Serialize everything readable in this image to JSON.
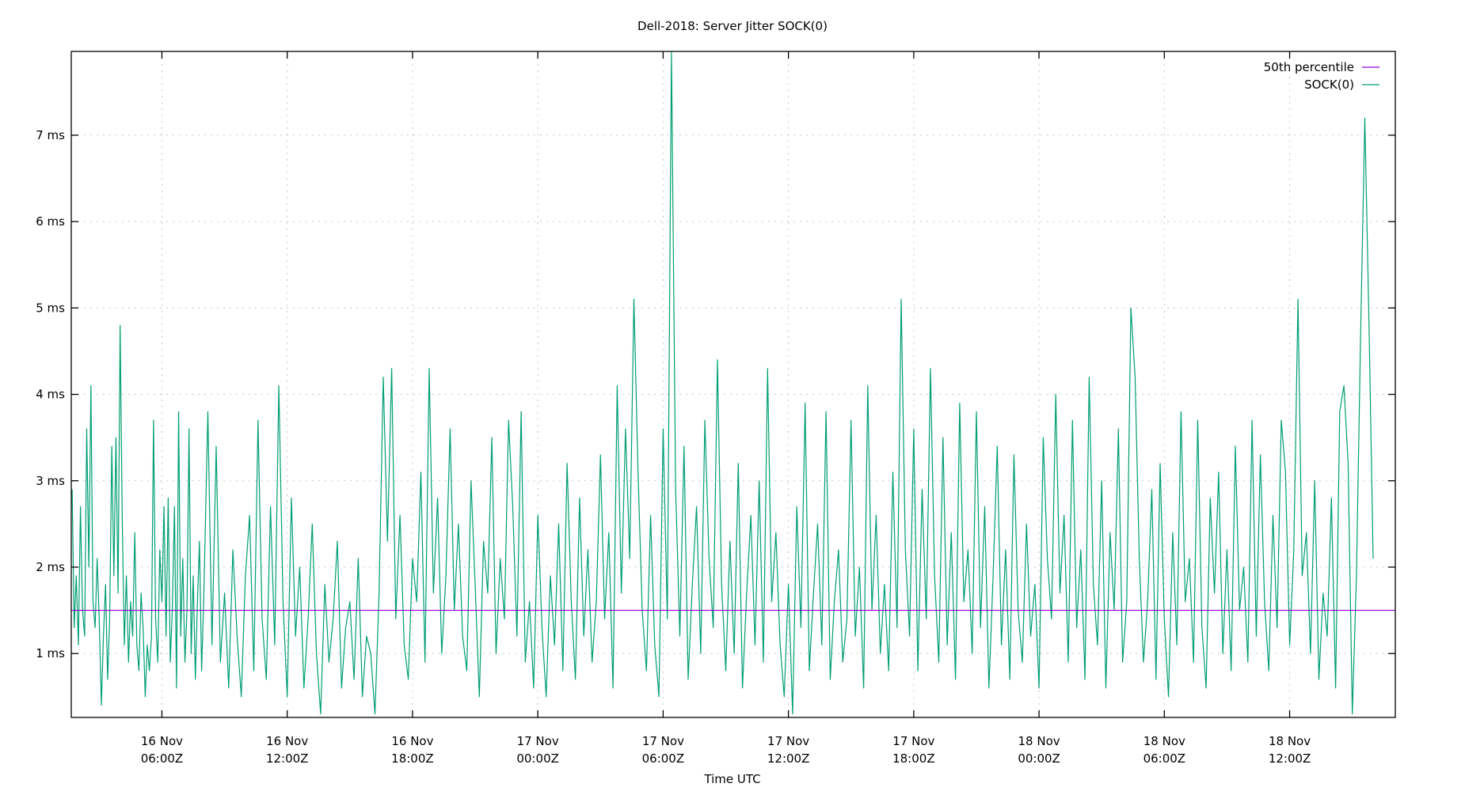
{
  "chart_data": {
    "type": "line",
    "title": "Dell-2018: Server Jitter SOCK(0)",
    "xlabel": "Time UTC",
    "ylabel": "",
    "ylim": [
      0.26,
      7.97
    ],
    "xlim_hours_from_16Nov_00Z": [
      1.66,
      65.06
    ],
    "grid": true,
    "legend_position": "top-right",
    "y_ticks": [
      {
        "value": 1,
        "label": "1 ms"
      },
      {
        "value": 2,
        "label": "2 ms"
      },
      {
        "value": 3,
        "label": "3 ms"
      },
      {
        "value": 4,
        "label": "4 ms"
      },
      {
        "value": 5,
        "label": "5 ms"
      },
      {
        "value": 6,
        "label": "6 ms"
      },
      {
        "value": 7,
        "label": "7 ms"
      }
    ],
    "x_ticks": [
      {
        "hours": 6,
        "line1": "16 Nov",
        "line2": "06:00Z"
      },
      {
        "hours": 12,
        "line1": "16 Nov",
        "line2": "12:00Z"
      },
      {
        "hours": 18,
        "line1": "16 Nov",
        "line2": "18:00Z"
      },
      {
        "hours": 24,
        "line1": "17 Nov",
        "line2": "00:00Z"
      },
      {
        "hours": 30,
        "line1": "17 Nov",
        "line2": "06:00Z"
      },
      {
        "hours": 36,
        "line1": "17 Nov",
        "line2": "12:00Z"
      },
      {
        "hours": 42,
        "line1": "17 Nov",
        "line2": "18:00Z"
      },
      {
        "hours": 48,
        "line1": "18 Nov",
        "line2": "00:00Z"
      },
      {
        "hours": 54,
        "line1": "18 Nov",
        "line2": "06:00Z"
      },
      {
        "hours": 60,
        "line1": "18 Nov",
        "line2": "12:00Z"
      }
    ],
    "series": [
      {
        "name": "50th percentile",
        "color": "#9400d3",
        "constant": 1.5
      },
      {
        "name": "SOCK(0)",
        "color": "#009e73",
        "x_hours": [
          1.7,
          1.8,
          1.9,
          2.0,
          2.1,
          2.2,
          2.3,
          2.4,
          2.5,
          2.6,
          2.7,
          2.8,
          2.9,
          3.0,
          3.1,
          3.2,
          3.3,
          3.4,
          3.5,
          3.6,
          3.7,
          3.8,
          3.9,
          4.0,
          4.1,
          4.2,
          4.3,
          4.4,
          4.5,
          4.6,
          4.7,
          4.8,
          4.9,
          5.0,
          5.1,
          5.2,
          5.3,
          5.4,
          5.5,
          5.6,
          5.7,
          5.8,
          5.9,
          6.0,
          6.1,
          6.2,
          6.3,
          6.4,
          6.5,
          6.6,
          6.7,
          6.8,
          6.9,
          7.0,
          7.1,
          7.2,
          7.3,
          7.4,
          7.5,
          7.6,
          7.7,
          7.8,
          7.9,
          8.0,
          8.2,
          8.4,
          8.6,
          8.8,
          9.0,
          9.2,
          9.4,
          9.6,
          9.8,
          10.0,
          10.2,
          10.4,
          10.6,
          10.8,
          11.0,
          11.2,
          11.4,
          11.6,
          11.8,
          12.0,
          12.2,
          12.4,
          12.6,
          12.8,
          13.0,
          13.2,
          13.4,
          13.6,
          13.8,
          14.0,
          14.2,
          14.4,
          14.6,
          14.8,
          15.0,
          15.2,
          15.4,
          15.6,
          15.8,
          16.0,
          16.2,
          16.4,
          16.6,
          16.8,
          17.0,
          17.2,
          17.4,
          17.6,
          17.8,
          18.0,
          18.2,
          18.4,
          18.6,
          18.8,
          19.0,
          19.2,
          19.4,
          19.6,
          19.8,
          20.0,
          20.2,
          20.4,
          20.6,
          20.8,
          21.0,
          21.2,
          21.4,
          21.6,
          21.8,
          22.0,
          22.2,
          22.4,
          22.6,
          22.8,
          23.0,
          23.2,
          23.4,
          23.6,
          23.8,
          24.0,
          24.2,
          24.4,
          24.6,
          24.8,
          25.0,
          25.2,
          25.4,
          25.6,
          25.8,
          26.0,
          26.2,
          26.4,
          26.6,
          26.8,
          27.0,
          27.2,
          27.4,
          27.6,
          27.8,
          28.0,
          28.2,
          28.4,
          28.6,
          28.8,
          29.0,
          29.2,
          29.4,
          29.6,
          29.8,
          30.0,
          30.2,
          30.4,
          30.6,
          30.8,
          31.0,
          31.2,
          31.4,
          31.6,
          31.8,
          32.0,
          32.2,
          32.4,
          32.6,
          32.8,
          33.0,
          33.2,
          33.4,
          33.6,
          33.8,
          34.0,
          34.2,
          34.4,
          34.6,
          34.8,
          35.0,
          35.2,
          35.4,
          35.6,
          35.8,
          36.0,
          36.2,
          36.4,
          36.6,
          36.8,
          37.0,
          37.2,
          37.4,
          37.6,
          37.8,
          38.0,
          38.2,
          38.4,
          38.6,
          38.8,
          39.0,
          39.2,
          39.4,
          39.6,
          39.8,
          40.0,
          40.2,
          40.4,
          40.6,
          40.8,
          41.0,
          41.2,
          41.4,
          41.6,
          41.8,
          42.0,
          42.2,
          42.4,
          42.6,
          42.8,
          43.0,
          43.2,
          43.4,
          43.6,
          43.8,
          44.0,
          44.2,
          44.4,
          44.6,
          44.8,
          45.0,
          45.2,
          45.4,
          45.6,
          45.8,
          46.0,
          46.2,
          46.4,
          46.6,
          46.8,
          47.0,
          47.2,
          47.4,
          47.6,
          47.8,
          48.0,
          48.2,
          48.4,
          48.6,
          48.8,
          49.0,
          49.2,
          49.4,
          49.6,
          49.8,
          50.0,
          50.2,
          50.4,
          50.6,
          50.8,
          51.0,
          51.2,
          51.4,
          51.6,
          51.8,
          52.0,
          52.2,
          52.4,
          52.6,
          52.8,
          53.0,
          53.2,
          53.4,
          53.6,
          53.8,
          54.0,
          54.2,
          54.4,
          54.6,
          54.8,
          55.0,
          55.2,
          55.4,
          55.6,
          55.8,
          56.0,
          56.2,
          56.4,
          56.6,
          56.8,
          57.0,
          57.2,
          57.4,
          57.6,
          57.8,
          58.0,
          58.2,
          58.4,
          58.6,
          58.8,
          59.0,
          59.2,
          59.4,
          59.6,
          59.8,
          60.0,
          60.2,
          60.4,
          60.6,
          60.8,
          61.0,
          61.2,
          61.4,
          61.6,
          61.8,
          62.0,
          62.2,
          62.4,
          62.6,
          62.8,
          63.0,
          63.2,
          63.4,
          63.6,
          63.8,
          64.0,
          64.2,
          64.4,
          64.6,
          64.8,
          65.0
        ],
        "values": [
          2.9,
          1.3,
          1.9,
          1.1,
          2.7,
          1.5,
          1.2,
          3.6,
          2.0,
          4.1,
          1.6,
          1.3,
          2.1,
          1.4,
          0.4,
          1.2,
          1.8,
          0.7,
          1.4,
          3.4,
          1.9,
          3.5,
          1.7,
          4.8,
          2.6,
          1.1,
          1.9,
          0.9,
          1.6,
          1.2,
          2.4,
          1.1,
          0.8,
          1.7,
          1.3,
          0.5,
          1.1,
          0.8,
          1.2,
          3.7,
          1.4,
          0.9,
          2.2,
          1.6,
          2.7,
          1.2,
          2.8,
          0.9,
          1.5,
          2.7,
          0.6,
          3.8,
          1.2,
          2.1,
          0.9,
          1.5,
          3.6,
          1.0,
          1.9,
          0.7,
          1.6,
          2.3,
          0.8,
          1.6,
          3.8,
          1.1,
          3.4,
          0.9,
          1.7,
          0.6,
          2.2,
          1.2,
          0.5,
          1.9,
          2.6,
          0.8,
          3.7,
          1.4,
          0.7,
          2.7,
          1.1,
          4.1,
          1.6,
          0.5,
          2.8,
          1.2,
          2.0,
          0.6,
          1.4,
          2.5,
          1.0,
          0.3,
          1.8,
          0.9,
          1.4,
          2.3,
          0.6,
          1.3,
          1.6,
          0.7,
          2.1,
          0.5,
          1.2,
          1.0,
          0.3,
          1.7,
          4.2,
          2.3,
          4.3,
          1.4,
          2.6,
          1.1,
          0.7,
          2.1,
          1.6,
          3.1,
          0.9,
          4.3,
          1.7,
          2.8,
          1.0,
          1.9,
          3.6,
          1.5,
          2.5,
          1.2,
          0.8,
          3.0,
          1.8,
          0.5,
          2.3,
          1.7,
          3.5,
          1.0,
          2.1,
          1.4,
          3.7,
          2.7,
          1.2,
          3.8,
          0.9,
          1.6,
          0.6,
          2.6,
          1.3,
          0.5,
          1.9,
          1.1,
          2.5,
          0.8,
          3.2,
          1.6,
          0.7,
          2.8,
          1.2,
          2.2,
          0.9,
          1.6,
          3.3,
          1.4,
          2.4,
          0.6,
          4.1,
          1.7,
          3.6,
          2.1,
          5.1,
          3.1,
          1.5,
          0.8,
          2.6,
          1.1,
          0.5,
          3.6,
          1.4,
          7.97,
          2.9,
          1.2,
          3.4,
          0.7,
          1.8,
          2.7,
          1.0,
          3.7,
          2.1,
          1.3,
          4.4,
          1.8,
          0.8,
          2.3,
          1.0,
          3.2,
          0.6,
          1.7,
          2.6,
          1.1,
          3.0,
          0.9,
          4.3,
          1.6,
          2.4,
          1.1,
          0.5,
          1.8,
          0.3,
          2.7,
          1.3,
          3.9,
          0.8,
          1.7,
          2.5,
          1.1,
          3.8,
          0.7,
          1.6,
          2.2,
          0.9,
          1.4,
          3.7,
          1.2,
          2.0,
          0.6,
          4.1,
          1.5,
          2.6,
          1.0,
          1.8,
          0.8,
          3.1,
          1.3,
          5.1,
          2.2,
          1.2,
          3.6,
          0.8,
          2.9,
          1.4,
          4.3,
          1.9,
          0.9,
          3.5,
          1.1,
          2.4,
          0.7,
          3.9,
          1.6,
          2.2,
          1.0,
          3.8,
          1.3,
          2.7,
          0.6,
          1.9,
          3.4,
          1.1,
          2.2,
          0.7,
          3.3,
          1.5,
          0.9,
          2.5,
          1.2,
          1.8,
          0.6,
          3.5,
          2.1,
          1.4,
          4.0,
          1.7,
          2.6,
          0.9,
          3.7,
          1.3,
          2.2,
          0.7,
          4.2,
          1.8,
          1.1,
          3.0,
          0.6,
          2.4,
          1.5,
          3.6,
          0.9,
          1.6,
          5.0,
          4.2,
          2.1,
          0.9,
          1.6,
          2.9,
          0.7,
          3.2,
          1.4,
          0.5,
          2.4,
          1.1,
          3.8,
          1.6,
          2.1,
          0.9,
          3.7,
          1.3,
          0.6,
          2.8,
          1.7,
          3.1,
          1.0,
          2.2,
          0.8,
          3.4,
          1.5,
          2.0,
          0.9,
          3.7,
          1.2,
          3.3,
          1.6,
          0.8,
          2.6,
          1.3,
          3.7,
          3.1,
          1.1,
          2.2,
          5.1,
          1.9,
          2.4,
          1.0,
          3.0,
          0.7,
          1.7,
          1.2,
          2.8,
          0.6,
          3.8,
          4.1,
          3.2,
          0.3,
          1.9,
          4.7,
          7.2,
          4.8,
          2.1
        ]
      }
    ]
  },
  "legend": {
    "items": [
      {
        "label": "50th percentile",
        "color": "#9400d3"
      },
      {
        "label": "SOCK(0)",
        "color": "#009e73"
      }
    ]
  }
}
